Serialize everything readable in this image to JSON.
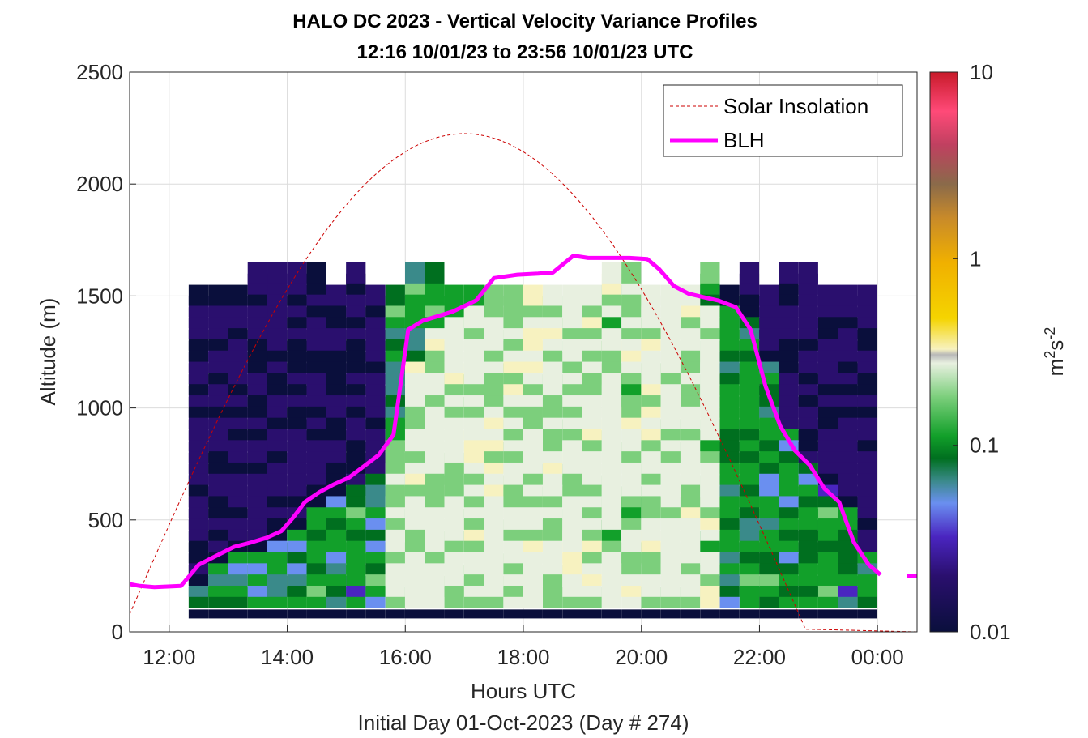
{
  "chart_data": {
    "type": "heatmap",
    "title_line1": "HALO DC 2023 - Vertical Velocity Variance Profiles",
    "title_line2": "12:16 10/01/23 to 23:56 10/01/23  UTC",
    "xlabel": "Hours UTC",
    "xlabel2": "Initial Day 01-Oct-2023 (Day # 274)",
    "ylabel": "Altitude (m)",
    "xlim": [
      11.33,
      24.67
    ],
    "ylim": [
      0,
      2500
    ],
    "x_ticks": [
      12,
      14,
      16,
      18,
      20,
      22,
      24
    ],
    "x_tick_labels": [
      "12:00",
      "14:00",
      "16:00",
      "18:00",
      "20:00",
      "22:00",
      "00:00"
    ],
    "y_ticks": [
      0,
      500,
      1000,
      1500,
      2000,
      2500
    ],
    "y_tick_labels": [
      "0",
      "500",
      "1000",
      "1500",
      "2000",
      "2500"
    ],
    "grid": true,
    "colorbar": {
      "label": "m²s⁻²",
      "scale": "log",
      "range": [
        0.01,
        10
      ],
      "ticks": [
        0.01,
        0.1,
        1,
        10
      ],
      "tick_labels": [
        "0.01",
        "0.1",
        "1",
        "10"
      ],
      "colors": [
        "#0a0f3c",
        "#2a0f6e",
        "#4a25c0",
        "#6a8ff0",
        "#3a8a8a",
        "#006f1f",
        "#12a02a",
        "#7ccf7c",
        "#e8f0e0",
        "#f7f2c0",
        "#f5d400",
        "#f0b000",
        "#c88a2a",
        "#8a6a4a",
        "#c04060",
        "#ff3060",
        "#c81a2a"
      ]
    },
    "legend": {
      "placement": "top-right",
      "entries": [
        {
          "label": "Solar Insolation",
          "color": "#cc0000",
          "style": "dashed"
        },
        {
          "label": "BLH",
          "color": "#ff00ff",
          "style": "solid"
        }
      ]
    },
    "blh_series": {
      "name": "BLH",
      "x": [
        11.3,
        11.5,
        11.75,
        12.2,
        12.5,
        12.8,
        13.1,
        13.4,
        13.65,
        13.9,
        14.1,
        14.3,
        14.55,
        14.8,
        15.05,
        15.3,
        15.55,
        15.8,
        16.05,
        16.3,
        16.55,
        16.8,
        17.2,
        17.5,
        17.9,
        18.25,
        18.5,
        18.85,
        19.1,
        19.5,
        19.8,
        20.1,
        20.3,
        20.55,
        20.8,
        21.05,
        21.3,
        21.6,
        21.85,
        22.1,
        22.35,
        22.6,
        22.85,
        23.1,
        23.35,
        23.6,
        23.85,
        24.05
      ],
      "y": [
        215,
        205,
        200,
        205,
        300,
        340,
        380,
        400,
        420,
        450,
        510,
        580,
        625,
        660,
        690,
        740,
        790,
        880,
        1350,
        1390,
        1410,
        1430,
        1480,
        1580,
        1595,
        1600,
        1605,
        1680,
        1670,
        1670,
        1670,
        1665,
        1620,
        1545,
        1510,
        1495,
        1480,
        1450,
        1350,
        1100,
        920,
        810,
        745,
        640,
        580,
        400,
        300,
        255
      ]
    },
    "blh_tail": {
      "x": [
        24.5,
        24.67
      ],
      "y": [
        248,
        248
      ]
    },
    "solar_insolation": {
      "name": "Solar Insolation",
      "peak_hour": 17.0,
      "peak_altitude": 2225,
      "rise_hour": 11.2,
      "set_hour": 22.8,
      "zero_until": 24.67
    }
  }
}
